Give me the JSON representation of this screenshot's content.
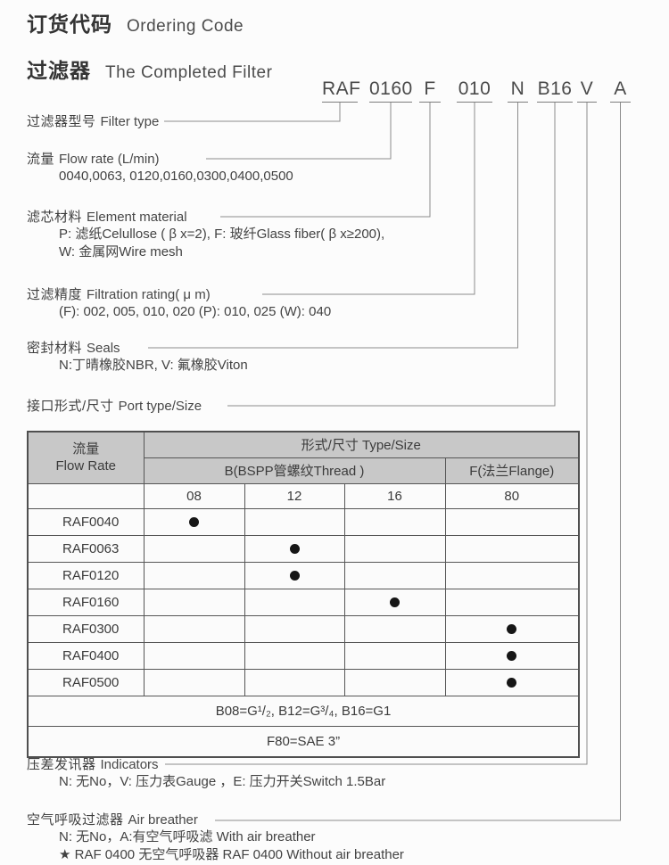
{
  "header": {
    "title_zh": "订货代码",
    "title_en": "Ordering Code",
    "subtitle_zh": "过滤器",
    "subtitle_en": "The Completed Filter"
  },
  "code": {
    "segments": [
      "RAF",
      "0160",
      "F",
      "010",
      "N",
      "B16",
      "V",
      "A"
    ]
  },
  "labels": [
    {
      "zh": "过滤器型号",
      "en": "Filter type",
      "details": []
    },
    {
      "zh": "流量",
      "en": "Flow rate (L/min)",
      "details": [
        "0040,0063, 0120,0160,0300,0400,0500"
      ]
    },
    {
      "zh": "滤芯材料",
      "en": "Element material",
      "details": [
        "P: 滤纸Celullose ( β x=2), F: 玻纤Glass fiber( β x≥200),",
        "W: 金属网Wire mesh"
      ]
    },
    {
      "zh": "过滤精度",
      "en": "Filtration rating( μ m)",
      "details": [
        "(F): 002, 005, 010, 020 (P): 010, 025 (W): 040"
      ]
    },
    {
      "zh": "密封材料",
      "en": "Seals",
      "details": [
        "N:丁晴橡胶NBR, V: 氟橡胶Viton"
      ]
    },
    {
      "zh": "接口形式/尺寸",
      "en": "Port type/Size",
      "details": []
    },
    {
      "zh": "压差发讯器",
      "en": "Indicators",
      "details": [
        "N: 无No，V: 压力表Gauge ，E: 压力开关Switch 1.5Bar"
      ]
    },
    {
      "zh": "空气呼吸过滤器",
      "en": "Air breather",
      "details": [
        "N: 无No，A:有空气呼吸滤 With air breather",
        "★  RAF 0400 无空气呼吸器 RAF 0400 Without air breather"
      ]
    }
  ],
  "table": {
    "header": {
      "flow_zh": "流量",
      "flow_en": "Flow Rate",
      "type_size": "形式/尺寸  Type/Size",
      "thread": "B(BSPP管螺纹Thread )",
      "flange": "F(法兰Flange)"
    },
    "sizes": [
      "08",
      "12",
      "16",
      "80"
    ],
    "rows": [
      {
        "model": "RAF0040",
        "dot": "08"
      },
      {
        "model": "RAF0063",
        "dot": "12"
      },
      {
        "model": "RAF0120",
        "dot": "12"
      },
      {
        "model": "RAF0160",
        "dot": "16"
      },
      {
        "model": "RAF0300",
        "dot": "80"
      },
      {
        "model": "RAF0400",
        "dot": "80"
      },
      {
        "model": "RAF0500",
        "dot": "80"
      }
    ],
    "notes": [
      "B08=G¹/₂, B12=G³/₄, B16=G1",
      "F80=SAE 3”"
    ]
  },
  "colors": {
    "header_bg": "#c8c8c8",
    "ink": "#3d3d3d",
    "line": "#8c8c8c",
    "dot": "#161616"
  }
}
